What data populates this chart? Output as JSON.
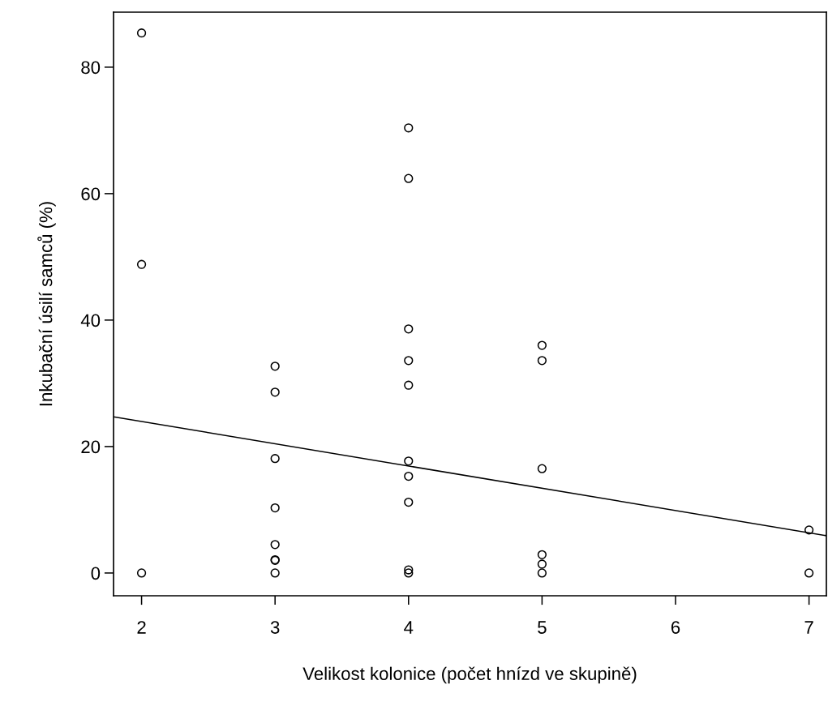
{
  "chart_data": {
    "type": "scatter",
    "xlabel": "Velikost kolonice (počet hnízd ve skupině)",
    "ylabel": "Inkubační úsilí samců (%)",
    "xlim": [
      1.79,
      7.13
    ],
    "ylim": [
      -3.6,
      88.7
    ],
    "xticks": [
      2,
      3,
      4,
      5,
      6,
      7
    ],
    "yticks": [
      0,
      20,
      40,
      60,
      80
    ],
    "grid": false,
    "legend": false,
    "series": [
      {
        "color": "#000000",
        "marker": "circle",
        "x": [
          2,
          2,
          2,
          3,
          3,
          3,
          3,
          3,
          3,
          3,
          3,
          4,
          4,
          4,
          4,
          4,
          4,
          4,
          4,
          4,
          4,
          5,
          5,
          5,
          5,
          5,
          5,
          7,
          7
        ],
        "values": [
          85.4,
          48.8,
          0,
          32.7,
          28.6,
          18.1,
          10.3,
          4.5,
          2.1,
          2.0,
          0,
          70.4,
          62.4,
          38.6,
          33.6,
          29.7,
          17.7,
          15.3,
          11.2,
          0.5,
          0,
          36.0,
          33.6,
          16.5,
          2.9,
          1.4,
          0,
          6.8,
          0
        ]
      },
      {
        "type": "line",
        "color": "#000000",
        "marker": "none",
        "line_style": "solid",
        "x": [
          1.79,
          7.13
        ],
        "values": [
          24.7,
          5.9
        ]
      }
    ]
  }
}
